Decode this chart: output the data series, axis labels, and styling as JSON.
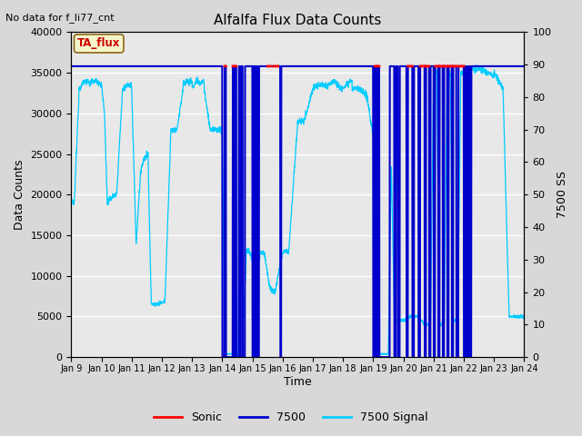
{
  "title": "Alfalfa Flux Data Counts",
  "top_left_text": "No data for f_li77_cnt",
  "box_label": "TA_flux",
  "xlabel": "Time",
  "ylabel_left": "Data Counts",
  "ylabel_right": "7500 SS",
  "xlim_days": [
    9,
    24
  ],
  "ylim_left": [
    0,
    40000
  ],
  "ylim_right": [
    0,
    100
  ],
  "bg_color": "#d8d8d8",
  "plot_bg_color": "#e8e8e8",
  "sonic_color": "#ff0000",
  "li7500_color": "#0000cc",
  "signal_color": "#00ccff",
  "legend_entries": [
    "Sonic",
    "7500",
    "7500 Signal"
  ],
  "legend_colors": [
    "#ff0000",
    "#0000cc",
    "#00ccff"
  ],
  "line_level": 35800
}
